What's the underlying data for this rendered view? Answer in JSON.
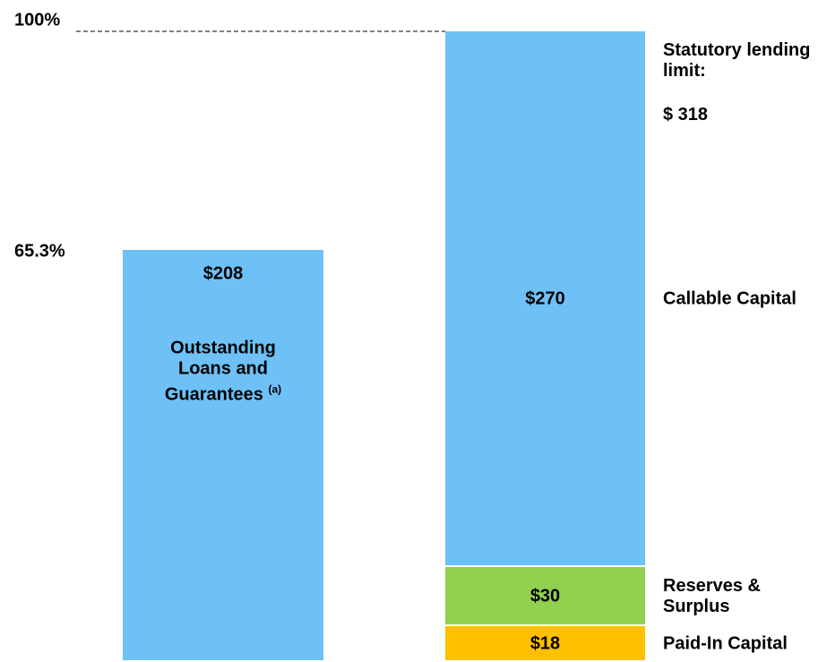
{
  "chart_data": {
    "type": "stacked_bar",
    "categories": [
      null,
      null
    ],
    "ylim": [
      0,
      318
    ],
    "y2lim": [
      0,
      100
    ],
    "series": [
      {
        "name": "Outstanding Loans and Guarantees",
        "note": "(a)",
        "color": "#6ec1f6",
        "values": [
          208,
          null
        ],
        "value_labels": [
          "$208",
          null
        ]
      },
      {
        "name": "Paid-In Capital",
        "color": "#ffc000",
        "values": [
          null,
          18
        ],
        "value_labels": [
          null,
          "$18"
        ]
      },
      {
        "name": "Reserves & Surplus",
        "color": "#92d050",
        "values": [
          null,
          30
        ],
        "value_labels": [
          null,
          "$30"
        ]
      },
      {
        "name": "Callable Capital",
        "color": "#6ec1f6",
        "values": [
          null,
          270
        ],
        "value_labels": [
          null,
          "$270"
        ]
      }
    ],
    "total": {
      "label": "Statutory lending limit:",
      "value": 318,
      "value_label": "$ 318"
    },
    "percent_markers": [
      {
        "value": 100,
        "label": "100%",
        "line": true
      },
      {
        "value": 65.3,
        "label": "65.3%",
        "line": false
      }
    ]
  }
}
